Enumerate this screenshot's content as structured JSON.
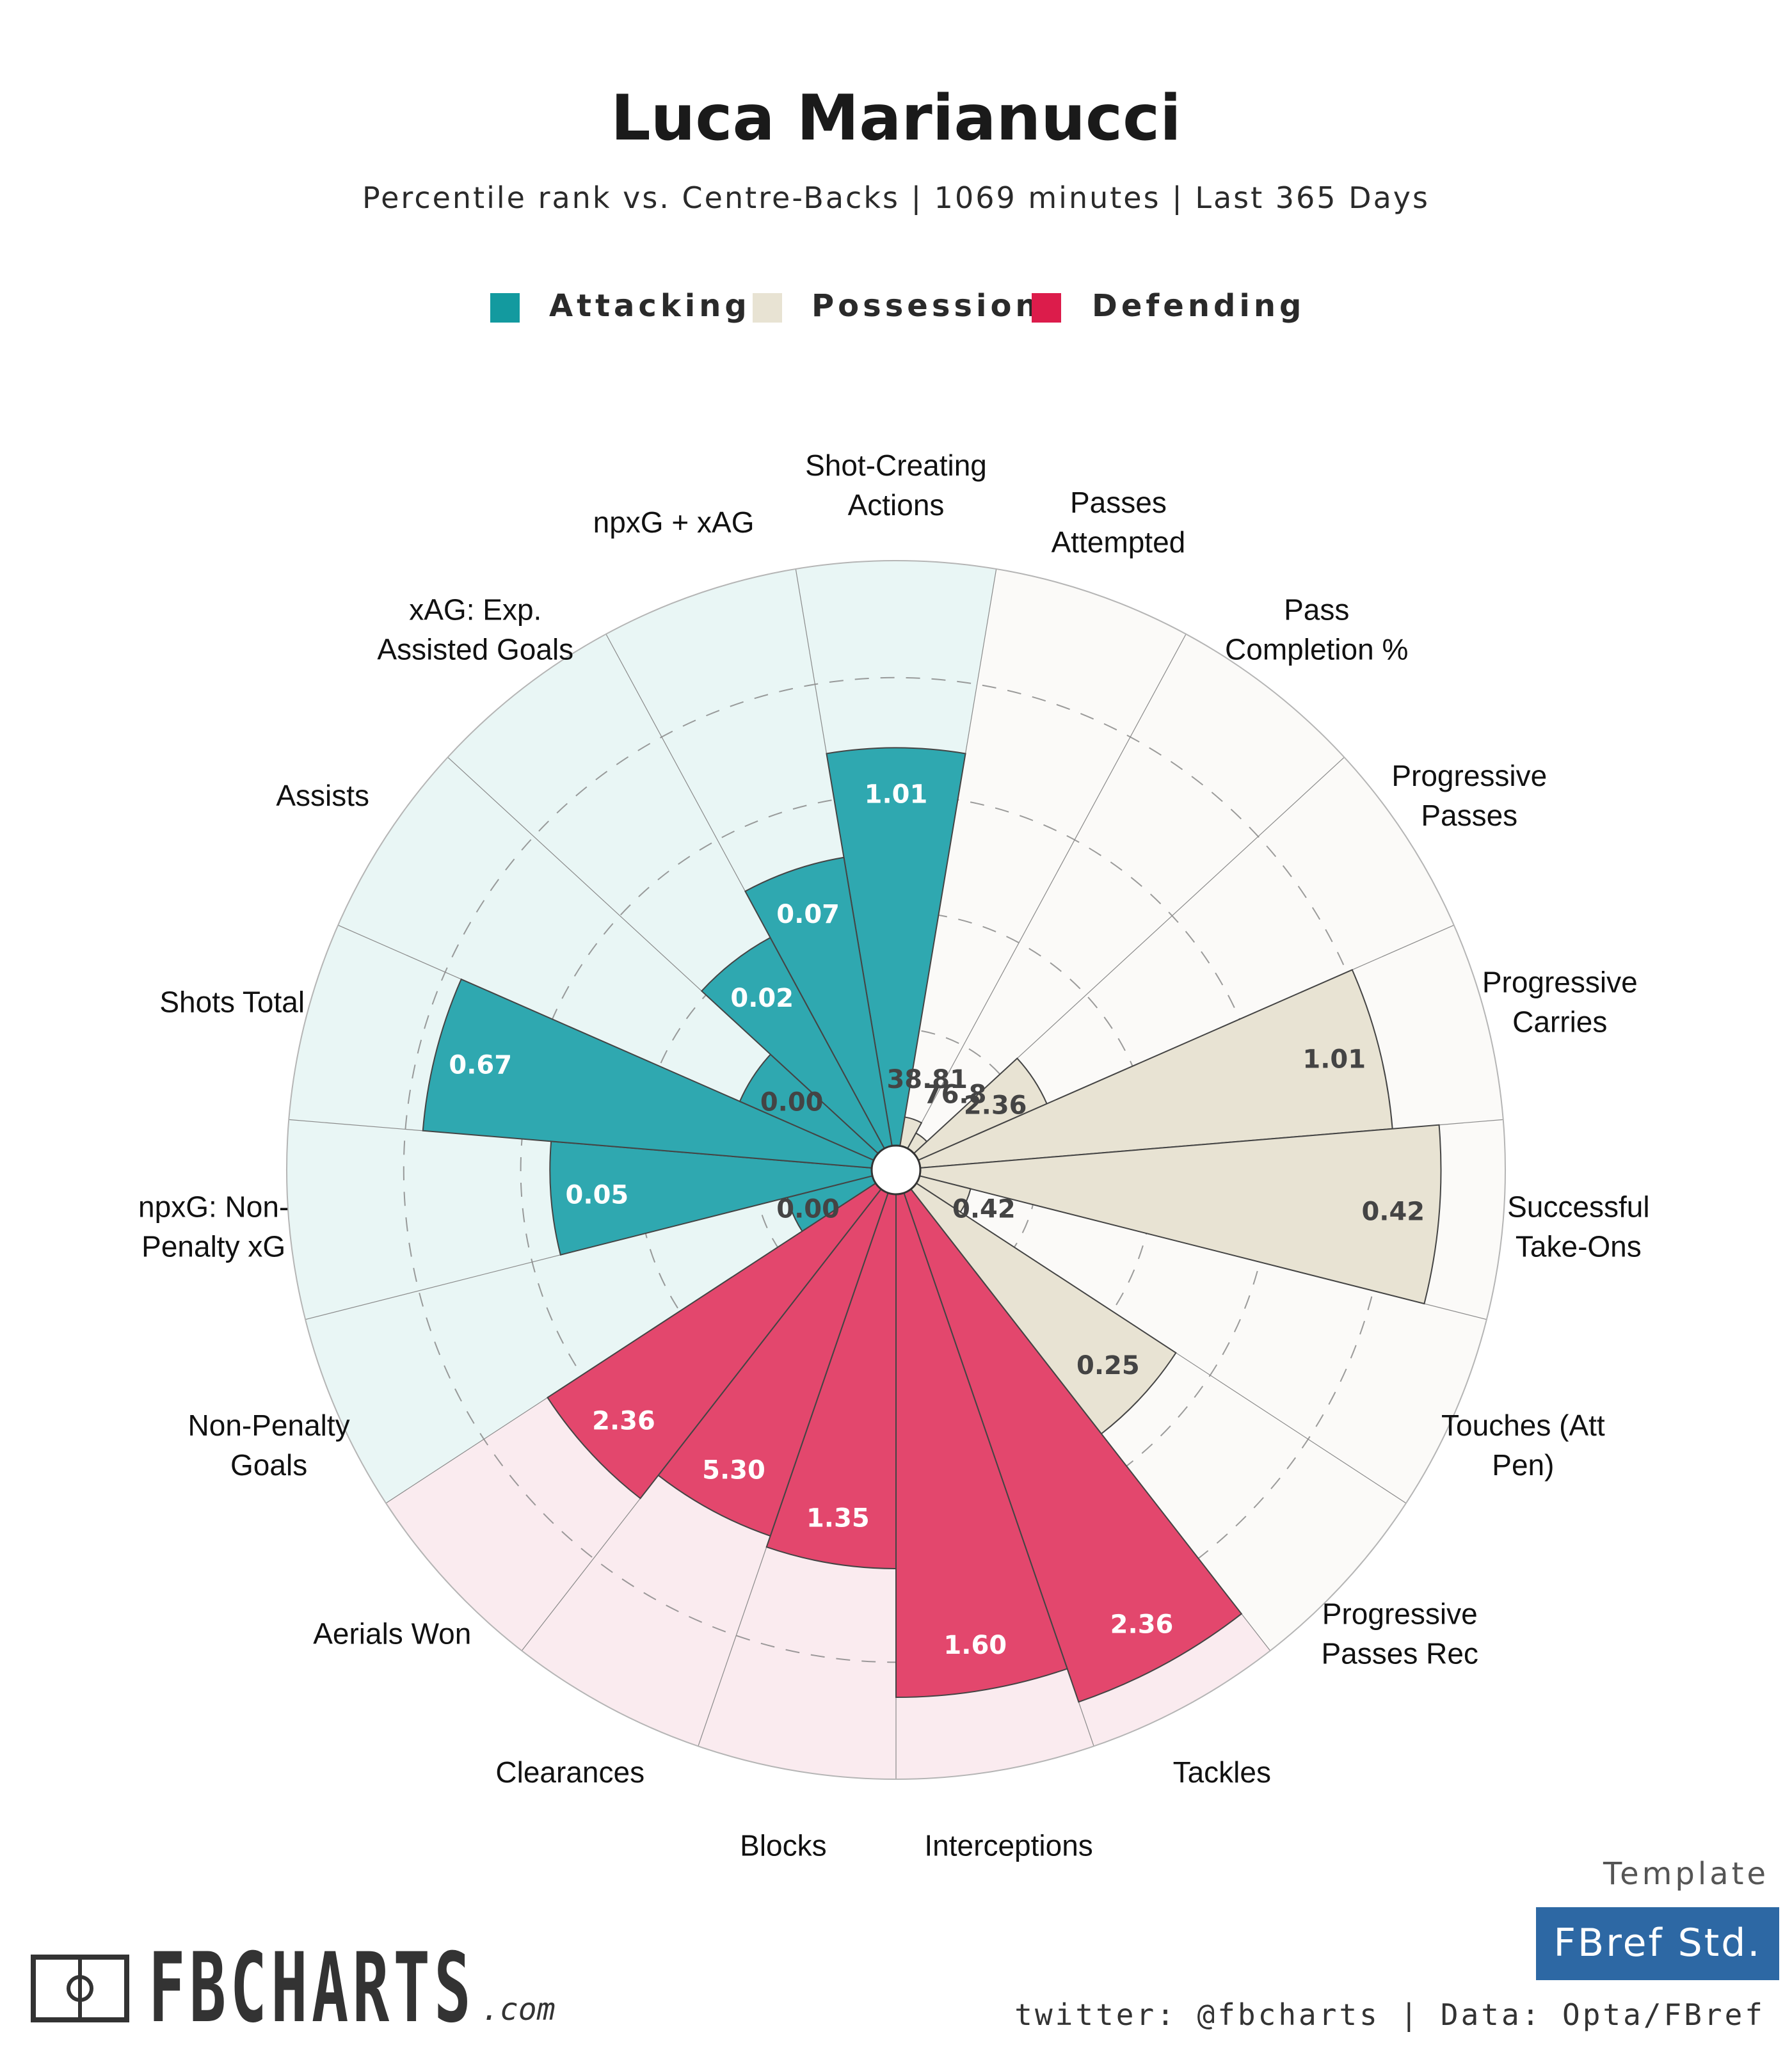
{
  "header": {
    "title": "Luca Marianucci",
    "subtitle": "Percentile rank vs. Centre-Backs | 1069 minutes | Last 365 Days"
  },
  "legend": [
    {
      "label": "Attacking",
      "color": "#139a9f"
    },
    {
      "label": "Possession",
      "color": "#e8e3d3"
    },
    {
      "label": "Defending",
      "color": "#dc1c4b"
    }
  ],
  "chart_data": {
    "type": "polar-bar",
    "title": "Luca Marianucci",
    "rmax": 100,
    "grid_percentiles": [
      20,
      40,
      60,
      80
    ],
    "series": [
      {
        "name": "Attacking",
        "color": "#139a9f",
        "fill": "#2fa8b0",
        "background": "#e9f6f5"
      },
      {
        "name": "Possession",
        "color": "#e8e3d3",
        "fill": "#e8e3d3",
        "background": "#fbfaf8"
      },
      {
        "name": "Defending",
        "color": "#dc1c4b",
        "fill": "#e3476d",
        "background": "#faebef"
      }
    ],
    "categories": [
      {
        "name": "Shot-Creating\nActions",
        "group": "Attacking",
        "value": "1.01",
        "percentile": 68
      },
      {
        "name": "Passes\nAttempted",
        "group": "Possession",
        "value": "38.81",
        "percentile": 5
      },
      {
        "name": "Pass\nCompletion %",
        "group": "Possession",
        "value": "76.8",
        "percentile": 3
      },
      {
        "name": "Progressive\nPasses",
        "group": "Possession",
        "value": "2.36",
        "percentile": 24
      },
      {
        "name": "Progressive\nCarries",
        "group": "Possession",
        "value": "1.01",
        "percentile": 81
      },
      {
        "name": "Successful\nTake-Ons",
        "group": "Possession",
        "value": "0.42",
        "percentile": 89
      },
      {
        "name": "Touches (Att\nPen)",
        "group": "Possession",
        "value": "0.42",
        "percentile": 9
      },
      {
        "name": "Progressive\nPasses Rec",
        "group": "Possession",
        "value": "0.25",
        "percentile": 53
      },
      {
        "name": "Tackles",
        "group": "Defending",
        "value": "2.36",
        "percentile": 92
      },
      {
        "name": "Interceptions",
        "group": "Defending",
        "value": "1.60",
        "percentile": 86
      },
      {
        "name": "Blocks",
        "group": "Defending",
        "value": "1.35",
        "percentile": 64
      },
      {
        "name": "Clearances",
        "group": "Defending",
        "value": "5.30",
        "percentile": 62
      },
      {
        "name": "Aerials Won",
        "group": "Defending",
        "value": "2.36",
        "percentile": 67
      },
      {
        "name": "Non-Penalty\nGoals",
        "group": "Attacking",
        "value": "0.00",
        "percentile": 15
      },
      {
        "name": "npxG: Non-\nPenalty xG",
        "group": "Attacking",
        "value": "0.05",
        "percentile": 55
      },
      {
        "name": "Shots Total",
        "group": "Attacking",
        "value": "0.67",
        "percentile": 77
      },
      {
        "name": "Assists",
        "group": "Attacking",
        "value": "0.00",
        "percentile": 25
      },
      {
        "name": "xAG: Exp.\nAssisted Goals",
        "group": "Attacking",
        "value": "0.02",
        "percentile": 41
      },
      {
        "name": "npxG + xAG",
        "group": "Attacking",
        "value": "0.07",
        "percentile": 50
      }
    ]
  },
  "footer": {
    "template_label": "Template",
    "template_name": "FBref Std.",
    "credits": "twitter: @fbcharts | Data: Opta/FBref",
    "brand_name": "FBCHARTS",
    "brand_suffix": ".com"
  }
}
